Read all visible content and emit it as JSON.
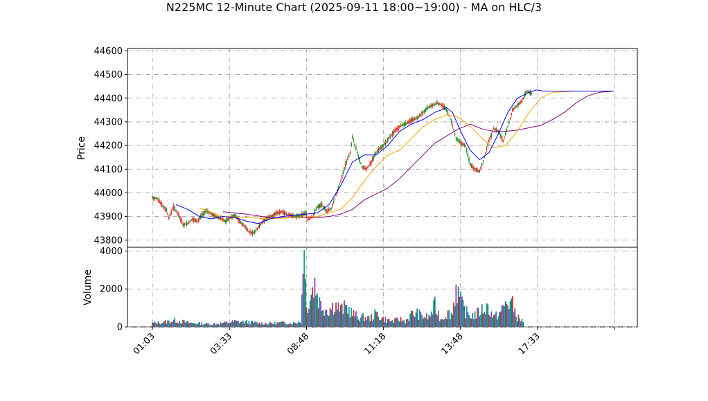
{
  "chart_data": {
    "type": "candlestick",
    "title": "N225MC 12-Minute Chart (2025-09-11 18:00~19:00) - MA on HLC/3",
    "x_ticks": [
      "01:03",
      "03:33",
      "08:48",
      "11:18",
      "13:48",
      "17:33"
    ],
    "price_panel": {
      "ylabel": "Price",
      "ylim": [
        43770,
        44610
      ],
      "y_ticks": [
        43800,
        43900,
        44000,
        44100,
        44200,
        44300,
        44400,
        44500,
        44600
      ],
      "grid": true,
      "candles_up_color": "#228b22",
      "candles_down_color": "#e8322a",
      "price_path": [
        [
          0,
          43980
        ],
        [
          4,
          43975
        ],
        [
          8,
          43950
        ],
        [
          12,
          43925
        ],
        [
          14,
          43895
        ],
        [
          18,
          43940
        ],
        [
          22,
          43910
        ],
        [
          26,
          43865
        ],
        [
          30,
          43870
        ],
        [
          34,
          43890
        ],
        [
          38,
          43880
        ],
        [
          42,
          43905
        ],
        [
          46,
          43925
        ],
        [
          50,
          43910
        ],
        [
          54,
          43900
        ],
        [
          58,
          43890
        ],
        [
          62,
          43880
        ],
        [
          66,
          43895
        ],
        [
          70,
          43905
        ],
        [
          74,
          43880
        ],
        [
          78,
          43860
        ],
        [
          82,
          43835
        ],
        [
          86,
          43830
        ],
        [
          90,
          43855
        ],
        [
          94,
          43880
        ],
        [
          98,
          43895
        ],
        [
          102,
          43905
        ],
        [
          106,
          43915
        ],
        [
          110,
          43920
        ],
        [
          114,
          43910
        ],
        [
          118,
          43905
        ],
        [
          122,
          43900
        ],
        [
          126,
          43905
        ],
        [
          130,
          43915
        ],
        [
          132,
          43885
        ],
        [
          136,
          43900
        ],
        [
          140,
          43940
        ],
        [
          144,
          43950
        ],
        [
          148,
          43920
        ],
        [
          152,
          43935
        ],
        [
          156,
          43990
        ],
        [
          160,
          44050
        ],
        [
          164,
          44120
        ],
        [
          168,
          44170
        ],
        [
          170,
          44235
        ],
        [
          174,
          44170
        ],
        [
          178,
          44110
        ],
        [
          182,
          44100
        ],
        [
          186,
          44130
        ],
        [
          190,
          44170
        ],
        [
          194,
          44190
        ],
        [
          198,
          44210
        ],
        [
          202,
          44240
        ],
        [
          206,
          44260
        ],
        [
          210,
          44280
        ],
        [
          214,
          44290
        ],
        [
          218,
          44300
        ],
        [
          222,
          44310
        ],
        [
          226,
          44320
        ],
        [
          230,
          44340
        ],
        [
          234,
          44360
        ],
        [
          238,
          44370
        ],
        [
          242,
          44380
        ],
        [
          246,
          44370
        ],
        [
          250,
          44350
        ],
        [
          254,
          44300
        ],
        [
          258,
          44230
        ],
        [
          262,
          44210
        ],
        [
          266,
          44200
        ],
        [
          270,
          44120
        ],
        [
          274,
          44100
        ],
        [
          278,
          44090
        ],
        [
          282,
          44150
        ],
        [
          286,
          44220
        ],
        [
          290,
          44270
        ],
        [
          294,
          44260
        ],
        [
          298,
          44220
        ],
        [
          302,
          44280
        ],
        [
          306,
          44350
        ],
        [
          310,
          44370
        ],
        [
          314,
          44390
        ],
        [
          318,
          44430
        ],
        [
          322,
          44420
        ]
      ],
      "ma_blue": [
        [
          20,
          43950
        ],
        [
          30,
          43930
        ],
        [
          40,
          43900
        ],
        [
          50,
          43890
        ],
        [
          60,
          43900
        ],
        [
          70,
          43895
        ],
        [
          80,
          43880
        ],
        [
          90,
          43870
        ],
        [
          100,
          43890
        ],
        [
          110,
          43900
        ],
        [
          120,
          43905
        ],
        [
          130,
          43910
        ],
        [
          140,
          43915
        ],
        [
          150,
          43950
        ],
        [
          160,
          44030
        ],
        [
          170,
          44130
        ],
        [
          180,
          44160
        ],
        [
          190,
          44160
        ],
        [
          200,
          44200
        ],
        [
          210,
          44260
        ],
        [
          220,
          44290
        ],
        [
          230,
          44310
        ],
        [
          240,
          44340
        ],
        [
          250,
          44360
        ],
        [
          255,
          44340
        ],
        [
          262,
          44260
        ],
        [
          270,
          44180
        ],
        [
          278,
          44140
        ],
        [
          286,
          44170
        ],
        [
          294,
          44250
        ],
        [
          302,
          44340
        ],
        [
          310,
          44400
        ],
        [
          318,
          44420
        ],
        [
          326,
          44435
        ],
        [
          332,
          44430
        ],
        [
          360,
          44430
        ],
        [
          392,
          44430
        ]
      ],
      "ma_orange": [
        [
          40,
          43935
        ],
        [
          60,
          43900
        ],
        [
          80,
          43895
        ],
        [
          100,
          43890
        ],
        [
          120,
          43895
        ],
        [
          140,
          43900
        ],
        [
          160,
          43930
        ],
        [
          170,
          43980
        ],
        [
          180,
          44050
        ],
        [
          190,
          44110
        ],
        [
          200,
          44160
        ],
        [
          210,
          44180
        ],
        [
          220,
          44230
        ],
        [
          230,
          44280
        ],
        [
          240,
          44310
        ],
        [
          250,
          44330
        ],
        [
          260,
          44320
        ],
        [
          270,
          44280
        ],
        [
          280,
          44230
        ],
        [
          290,
          44190
        ],
        [
          300,
          44200
        ],
        [
          310,
          44260
        ],
        [
          320,
          44340
        ],
        [
          330,
          44400
        ],
        [
          340,
          44425
        ],
        [
          360,
          44430
        ],
        [
          392,
          44430
        ]
      ],
      "ma_purple": [
        [
          60,
          43920
        ],
        [
          80,
          43910
        ],
        [
          100,
          43895
        ],
        [
          120,
          43895
        ],
        [
          140,
          43895
        ],
        [
          150,
          43900
        ],
        [
          160,
          43910
        ],
        [
          170,
          43930
        ],
        [
          180,
          43970
        ],
        [
          190,
          43995
        ],
        [
          200,
          44020
        ],
        [
          210,
          44060
        ],
        [
          220,
          44110
        ],
        [
          230,
          44160
        ],
        [
          240,
          44210
        ],
        [
          250,
          44240
        ],
        [
          260,
          44270
        ],
        [
          270,
          44290
        ],
        [
          280,
          44270
        ],
        [
          290,
          44260
        ],
        [
          300,
          44260
        ],
        [
          310,
          44265
        ],
        [
          320,
          44275
        ],
        [
          330,
          44285
        ],
        [
          340,
          44310
        ],
        [
          350,
          44340
        ],
        [
          360,
          44380
        ],
        [
          370,
          44410
        ],
        [
          380,
          44425
        ],
        [
          392,
          44430
        ]
      ]
    },
    "volume_panel": {
      "ylabel": "Volume",
      "ylim": [
        0,
        4200
      ],
      "y_ticks": [
        0,
        2000,
        4000
      ],
      "grid": true,
      "bar_colors": [
        "#1f7a7a",
        "#c0392b",
        "#2e86c1",
        "#8e44ad",
        "#16a085"
      ],
      "profile": [
        [
          0,
          200
        ],
        [
          10,
          250
        ],
        [
          20,
          350
        ],
        [
          30,
          220
        ],
        [
          40,
          180
        ],
        [
          50,
          150
        ],
        [
          60,
          200
        ],
        [
          70,
          280
        ],
        [
          80,
          260
        ],
        [
          90,
          200
        ],
        [
          100,
          180
        ],
        [
          110,
          220
        ],
        [
          120,
          200
        ],
        [
          126,
          300
        ],
        [
          129,
          4050
        ],
        [
          131,
          1000
        ],
        [
          135,
          1800
        ],
        [
          138,
          2300
        ],
        [
          142,
          1300
        ],
        [
          146,
          1000
        ],
        [
          150,
          900
        ],
        [
          155,
          1200
        ],
        [
          160,
          900
        ],
        [
          165,
          1050
        ],
        [
          170,
          700
        ],
        [
          175,
          500
        ],
        [
          180,
          500
        ],
        [
          185,
          450
        ],
        [
          190,
          700
        ],
        [
          195,
          450
        ],
        [
          200,
          350
        ],
        [
          205,
          300
        ],
        [
          210,
          400
        ],
        [
          215,
          300
        ],
        [
          220,
          650
        ],
        [
          225,
          700
        ],
        [
          230,
          550
        ],
        [
          235,
          500
        ],
        [
          240,
          1100
        ],
        [
          245,
          400
        ],
        [
          250,
          700
        ],
        [
          255,
          700
        ],
        [
          258,
          2200
        ],
        [
          262,
          1300
        ],
        [
          266,
          800
        ],
        [
          270,
          600
        ],
        [
          275,
          650
        ],
        [
          280,
          900
        ],
        [
          285,
          1050
        ],
        [
          290,
          500
        ],
        [
          295,
          700
        ],
        [
          300,
          1200
        ],
        [
          305,
          1300
        ],
        [
          310,
          500
        ],
        [
          315,
          300
        ]
      ]
    }
  }
}
